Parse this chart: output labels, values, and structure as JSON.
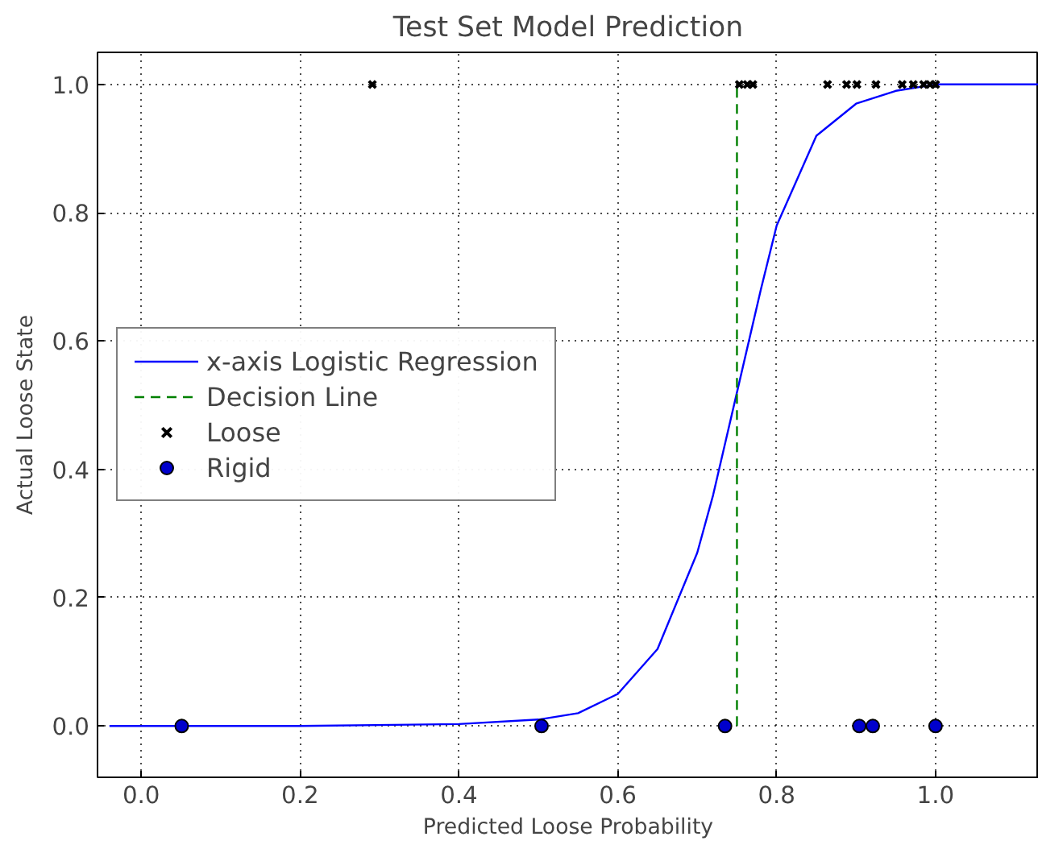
{
  "chart_data": {
    "type": "scatter",
    "title": "Test Set Model Prediction",
    "xlabel": "Predicted Loose Probability",
    "ylabel": "Actual Loose State",
    "xlim": [
      -0.055,
      1.13
    ],
    "ylim": [
      -0.08,
      1.05
    ],
    "xticks": [
      {
        "value": 0,
        "label": "0.0"
      },
      0.2,
      0.4,
      0.6,
      0.8,
      {
        "value": 1,
        "label": "1.0"
      }
    ],
    "yticks": [
      {
        "value": 0,
        "label": "0.0"
      },
      0.2,
      0.4,
      0.6,
      0.8,
      {
        "value": 1,
        "label": "1.0"
      }
    ],
    "grid": true,
    "legend": "left",
    "series": [
      {
        "name": "x-axis Logistic Regression",
        "type": "line",
        "color": "#0000ff",
        "line_style": "solid",
        "x": [
          -0.04,
          0.2,
          0.4,
          0.5,
          0.55,
          0.6,
          0.65,
          0.7,
          0.72,
          0.75,
          0.78,
          0.8,
          0.85,
          0.9,
          0.95,
          1.0,
          1.13
        ],
        "values": [
          0,
          0,
          0.003,
          0.01,
          0.02,
          0.05,
          0.12,
          0.27,
          0.36,
          0.52,
          0.68,
          0.78,
          0.92,
          0.97,
          0.99,
          1.0,
          1.0
        ]
      },
      {
        "name": "Decision Line",
        "type": "line",
        "color": "#008000",
        "line_style": "dashed",
        "x": [
          0.75,
          0.75
        ],
        "values": [
          0,
          1
        ]
      },
      {
        "name": "Loose",
        "marker": "cross",
        "color": "#000000",
        "x": [
          0.291,
          0.753,
          0.763,
          0.77,
          0.864,
          0.888,
          0.901,
          0.925,
          0.958,
          0.972,
          0.985,
          0.993,
          1.0
        ],
        "values": [
          1,
          1,
          1,
          1,
          1,
          1,
          1,
          1,
          1,
          1,
          1,
          1,
          1
        ]
      },
      {
        "name": "Rigid",
        "marker": "circle",
        "color": "#0000cc",
        "x": [
          0.051,
          0.504,
          0.735,
          0.904,
          0.921,
          1.0
        ],
        "values": [
          0,
          0,
          0,
          0,
          0,
          0
        ]
      }
    ]
  }
}
